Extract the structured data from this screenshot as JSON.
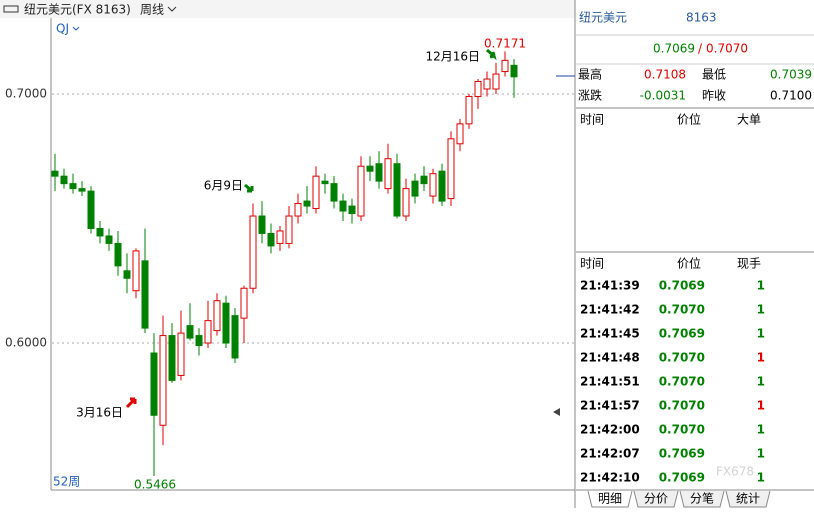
{
  "header": {
    "title": "纽元美元(FX 8163)",
    "period": "周线"
  },
  "chart_data": {
    "type": "candlestick",
    "indicator": "QJ",
    "range_label": "52周",
    "annotations": [
      "12月16日",
      "6月9日",
      "3月16日"
    ],
    "high_label": "0.7171",
    "low_label": "0.5466",
    "up_color": "#e00000",
    "down_color": "#008000",
    "open": [
      0.669,
      0.667,
      0.664,
      0.662,
      0.661,
      0.646,
      0.643,
      0.64,
      0.629,
      0.621,
      0.633,
      0.596,
      0.567,
      0.603,
      0.587,
      0.607,
      0.603,
      0.6,
      0.605,
      0.616,
      0.611,
      0.61,
      0.622,
      0.651,
      0.644,
      0.64,
      0.64,
      0.651,
      0.657,
      0.654,
      0.665,
      0.664,
      0.657,
      0.655,
      0.651,
      0.671,
      0.672,
      0.662,
      0.672,
      0.651,
      0.665,
      0.667,
      0.659,
      0.669,
      0.658,
      0.68,
      0.688,
      0.699,
      0.702,
      0.702,
      0.709,
      0.7115
    ],
    "high": [
      0.676,
      0.67,
      0.668,
      0.665,
      0.663,
      0.649,
      0.646,
      0.645,
      0.636,
      0.638,
      0.646,
      0.604,
      0.611,
      0.608,
      0.613,
      0.616,
      0.606,
      0.617,
      0.62,
      0.619,
      0.614,
      0.623,
      0.656,
      0.657,
      0.648,
      0.647,
      0.655,
      0.66,
      0.663,
      0.671,
      0.668,
      0.667,
      0.66,
      0.658,
      0.675,
      0.675,
      0.677,
      0.68,
      0.676,
      0.666,
      0.668,
      0.671,
      0.67,
      0.672,
      0.685,
      0.69,
      0.7,
      0.706,
      0.709,
      0.7125,
      0.7171,
      0.714
    ],
    "low": [
      0.661,
      0.662,
      0.66,
      0.659,
      0.644,
      0.64,
      0.637,
      0.627,
      0.62,
      0.618,
      0.604,
      0.5466,
      0.559,
      0.584,
      0.585,
      0.601,
      0.595,
      0.598,
      0.603,
      0.598,
      0.592,
      0.6,
      0.62,
      0.64,
      0.636,
      0.637,
      0.638,
      0.648,
      0.652,
      0.652,
      0.66,
      0.654,
      0.649,
      0.648,
      0.649,
      0.665,
      0.662,
      0.66,
      0.65,
      0.649,
      0.656,
      0.661,
      0.656,
      0.655,
      0.655,
      0.677,
      0.686,
      0.694,
      0.699,
      0.7,
      0.707,
      0.6985
    ],
    "close": [
      0.667,
      0.664,
      0.662,
      0.661,
      0.646,
      0.643,
      0.64,
      0.631,
      0.626,
      0.637,
      0.606,
      0.571,
      0.603,
      0.585,
      0.604,
      0.602,
      0.599,
      0.609,
      0.617,
      0.6,
      0.594,
      0.622,
      0.651,
      0.644,
      0.639,
      0.645,
      0.651,
      0.656,
      0.655,
      0.667,
      0.664,
      0.657,
      0.653,
      0.652,
      0.671,
      0.669,
      0.665,
      0.674,
      0.651,
      0.662,
      0.659,
      0.664,
      0.668,
      0.657,
      0.682,
      0.688,
      0.699,
      0.705,
      0.706,
      0.708,
      0.7135,
      0.7069
    ],
    "ylim": [
      0.541,
      0.7305
    ],
    "yticks": [
      {
        "value": 0.6,
        "label": "0.6000"
      },
      {
        "value": 0.7,
        "label": "0.7000"
      }
    ],
    "grid": true
  },
  "quote": {
    "title": "纽元美元",
    "code": "8163",
    "bid": "0.7069",
    "separator": "/",
    "ask": "0.7070",
    "stats": [
      [
        "最高",
        "0.7108",
        "最低",
        "0.7039"
      ],
      [
        "涨跌",
        "-0.0031",
        "昨收",
        "0.7100"
      ]
    ],
    "big_header": [
      "时间",
      "价位",
      "大单"
    ],
    "trade_header": [
      "时间",
      "价位",
      "现手"
    ],
    "trades": [
      [
        "21:41:39",
        "0.7069",
        "1",
        "#008000"
      ],
      [
        "21:41:42",
        "0.7070",
        "1",
        "#008000"
      ],
      [
        "21:41:45",
        "0.7069",
        "1",
        "#008000"
      ],
      [
        "21:41:48",
        "0.7070",
        "1",
        "#e00000"
      ],
      [
        "21:41:51",
        "0.7070",
        "1",
        "#008000"
      ],
      [
        "21:41:57",
        "0.7070",
        "1",
        "#e00000"
      ],
      [
        "21:42:00",
        "0.7070",
        "1",
        "#008000"
      ],
      [
        "21:42:07",
        "0.7069",
        "1",
        "#008000"
      ],
      [
        "21:42:10",
        "0.7069",
        "1",
        "#008000"
      ]
    ],
    "tabs": [
      "明细",
      "分价",
      "分笔",
      "统计"
    ],
    "watermark": "FX678"
  }
}
